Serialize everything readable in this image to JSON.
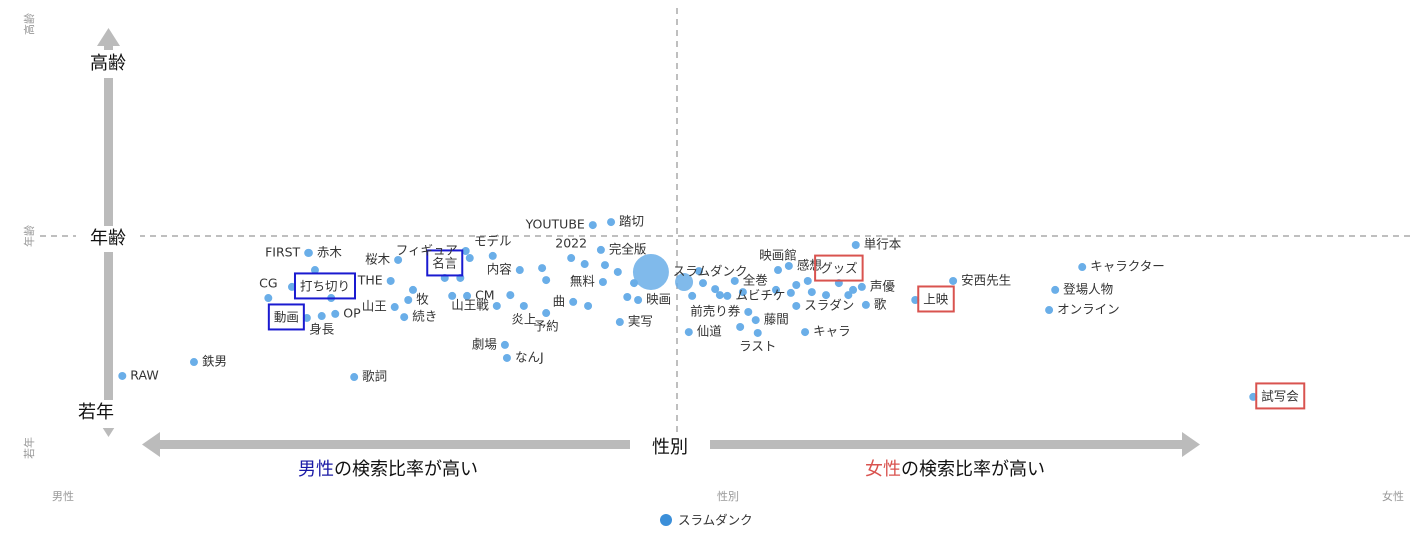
{
  "chart_data": {
    "type": "scatter",
    "xlim": [
      -1,
      1
    ],
    "ylim": [
      -1,
      1
    ],
    "xticks": [
      {
        "value": -1,
        "label": "男性"
      },
      {
        "value": 0,
        "label": "性別"
      },
      {
        "value": 1,
        "label": "女性"
      }
    ],
    "yticks": [
      {
        "value": -1,
        "label": "若年"
      },
      {
        "value": 0,
        "label": "年齢"
      },
      {
        "value": 1,
        "label": "高齢"
      }
    ],
    "legend": "bottom",
    "annotations": {
      "y_high": "高齢",
      "y_mid": "年齢",
      "y_low": "若年",
      "x_mid": "性別",
      "male": "男性",
      "male_rest": "の検索比率が高い",
      "female": "女性",
      "female_rest": "の検索比率が高い",
      "male_color": "#1a1aa6",
      "female_color": "#d9534f"
    },
    "series": [
      {
        "name": "スラムダンク",
        "color": "#6aaee8",
        "legend_color": "#3b8fd9",
        "x": [
          -0.896,
          -0.79,
          -0.553,
          -0.621,
          -0.62,
          -0.68,
          -0.645,
          -0.611,
          -0.587,
          -0.623,
          -0.581,
          -0.601,
          -0.499,
          -0.493,
          -0.473,
          -0.479,
          -0.466,
          -0.419,
          -0.408,
          -0.396,
          -0.386,
          -0.388,
          -0.488,
          -0.382,
          -0.348,
          -0.33,
          -0.327,
          -0.322,
          -0.308,
          -0.302,
          -0.342,
          -0.275,
          -0.269,
          -0.269,
          -0.229,
          -0.207,
          -0.232,
          -0.212,
          -0.2,
          -0.173,
          -0.188,
          -0.182,
          -0.185,
          -0.163,
          -0.16,
          -0.149,
          -0.139,
          -0.133,
          -0.114,
          -0.065,
          -0.053,
          -0.043,
          -0.037,
          -0.019,
          -0.012,
          -0.001,
          0.01,
          0.022,
          0.018,
          0.03,
          0.041,
          0.044,
          -0.058,
          0.074,
          0.09,
          0.093,
          0.101,
          0.101,
          0.118,
          0.124,
          0.145,
          0.114,
          0.164,
          0.185,
          0.198,
          0.204,
          0.178,
          0.189,
          0.277,
          0.333,
          0.524,
          0.484,
          0.475,
          0.777,
          0.071
        ],
        "values": [
          -0.654,
          -0.589,
          -0.659,
          -0.079,
          -0.079,
          -0.29,
          -0.238,
          -0.159,
          -0.29,
          -0.383,
          -0.364,
          -0.374,
          -0.21,
          -0.332,
          -0.299,
          -0.379,
          -0.252,
          -0.196,
          -0.28,
          -0.196,
          -0.28,
          -0.07,
          -0.112,
          -0.103,
          -0.093,
          -0.509,
          -0.57,
          -0.276,
          -0.159,
          -0.327,
          -0.327,
          -0.15,
          -0.206,
          -0.36,
          -0.308,
          -0.327,
          -0.103,
          -0.131,
          0.051,
          0.065,
          -0.065,
          -0.136,
          -0.215,
          -0.168,
          -0.402,
          -0.285,
          -0.22,
          -0.299,
          -0.168,
          -0.215,
          -0.28,
          -0.164,
          -0.22,
          -0.248,
          -0.276,
          -0.28,
          -0.21,
          -0.262,
          -0.425,
          -0.355,
          -0.393,
          -0.453,
          -0.449,
          -0.159,
          -0.14,
          -0.266,
          -0.229,
          -0.327,
          -0.21,
          -0.262,
          -0.276,
          -0.449,
          -0.22,
          -0.252,
          -0.238,
          -0.322,
          -0.276,
          -0.042,
          -0.299,
          -0.21,
          -0.145,
          -0.252,
          -0.346,
          -0.752,
          -0.252
        ],
        "sizes": [
          4,
          4,
          4,
          4,
          4,
          4,
          4,
          4,
          4,
          4,
          4,
          4,
          4,
          4,
          4,
          4,
          4,
          4,
          4,
          4,
          4,
          4,
          4,
          4,
          4,
          4,
          4,
          4,
          4,
          4,
          4,
          4,
          4,
          4,
          4,
          4,
          4,
          4,
          4,
          4,
          4,
          4,
          4,
          4,
          4,
          4,
          4,
          4,
          18,
          9,
          4,
          4,
          4,
          4,
          4,
          4,
          4,
          4,
          4,
          4,
          4,
          4,
          4,
          4,
          4,
          4,
          4,
          4,
          4,
          4,
          4,
          4,
          4,
          4,
          4,
          4,
          4,
          4,
          4,
          4,
          4,
          4,
          4,
          4,
          4
        ],
        "labels": [
          "RAW",
          "鉄男",
          "歌詞",
          "FIRST",
          "赤木",
          "CG",
          "打ち切り",
          null,
          null,
          "動画",
          "OP",
          "身長",
          "THE",
          "山王",
          "牧",
          "続き",
          null,
          "名言",
          null,
          null,
          "CM",
          "フィギュア",
          "桜木",
          null,
          "モデル",
          "劇場",
          "なんJ",
          null,
          "内容",
          "炎上",
          "山王戦",
          null,
          null,
          "予約",
          "曲",
          null,
          "2022",
          null,
          "YOUTUBE",
          "踏切",
          "完全版",
          null,
          "無料",
          null,
          "実写",
          null,
          null,
          "映画",
          "スラムダンク",
          null,
          null,
          null,
          null,
          null,
          null,
          "ムビチケ",
          "全巻",
          null,
          null,
          "前売り券",
          "藤間",
          "ラスト",
          "仙道",
          "映画館",
          "感想",
          null,
          null,
          "スラダン",
          null,
          null,
          null,
          "キャラ",
          "グッズ",
          null,
          "声優",
          "歌",
          null,
          "単行本",
          "上映",
          "安西先生",
          "キャラクター",
          "登場人物",
          "オンライン",
          "試写会",
          null
        ],
        "label_sides": [
          "right",
          "right",
          "right",
          "left",
          "right",
          "above",
          "right",
          null,
          null,
          "left",
          "right",
          "below",
          "left",
          "left",
          "right",
          "right",
          null,
          "above",
          null,
          null,
          "right",
          "left",
          "left",
          null,
          "above",
          "left",
          "right",
          null,
          "left",
          "below",
          "left",
          null,
          null,
          "below",
          "left",
          null,
          "above",
          null,
          "left",
          "right",
          "right",
          null,
          "left",
          null,
          "right",
          null,
          null,
          "right",
          "right",
          null,
          null,
          null,
          null,
          null,
          null,
          "right",
          "right",
          null,
          null,
          "left",
          "right",
          "below",
          "right",
          "above",
          "right",
          null,
          null,
          "right",
          null,
          null,
          null,
          "right",
          "above",
          null,
          "right",
          "right",
          null,
          "right",
          "right",
          "right",
          "right",
          "right",
          "right",
          "right",
          null
        ],
        "label_boxes": [
          null,
          null,
          null,
          null,
          null,
          null,
          "#1a1ad0",
          null,
          null,
          "#1a1ad0",
          null,
          null,
          null,
          null,
          null,
          null,
          null,
          "#1a1ad0",
          null,
          null,
          null,
          null,
          null,
          null,
          null,
          null,
          null,
          null,
          null,
          null,
          null,
          null,
          null,
          null,
          null,
          null,
          null,
          null,
          null,
          null,
          null,
          null,
          null,
          null,
          null,
          null,
          null,
          null,
          null,
          null,
          null,
          null,
          null,
          null,
          null,
          null,
          null,
          null,
          null,
          null,
          null,
          null,
          null,
          null,
          null,
          null,
          null,
          null,
          null,
          null,
          null,
          null,
          "#d9534f",
          null,
          null,
          null,
          null,
          null,
          "#d9534f",
          null,
          null,
          null,
          null,
          "#d9534f",
          null
        ]
      }
    ]
  }
}
